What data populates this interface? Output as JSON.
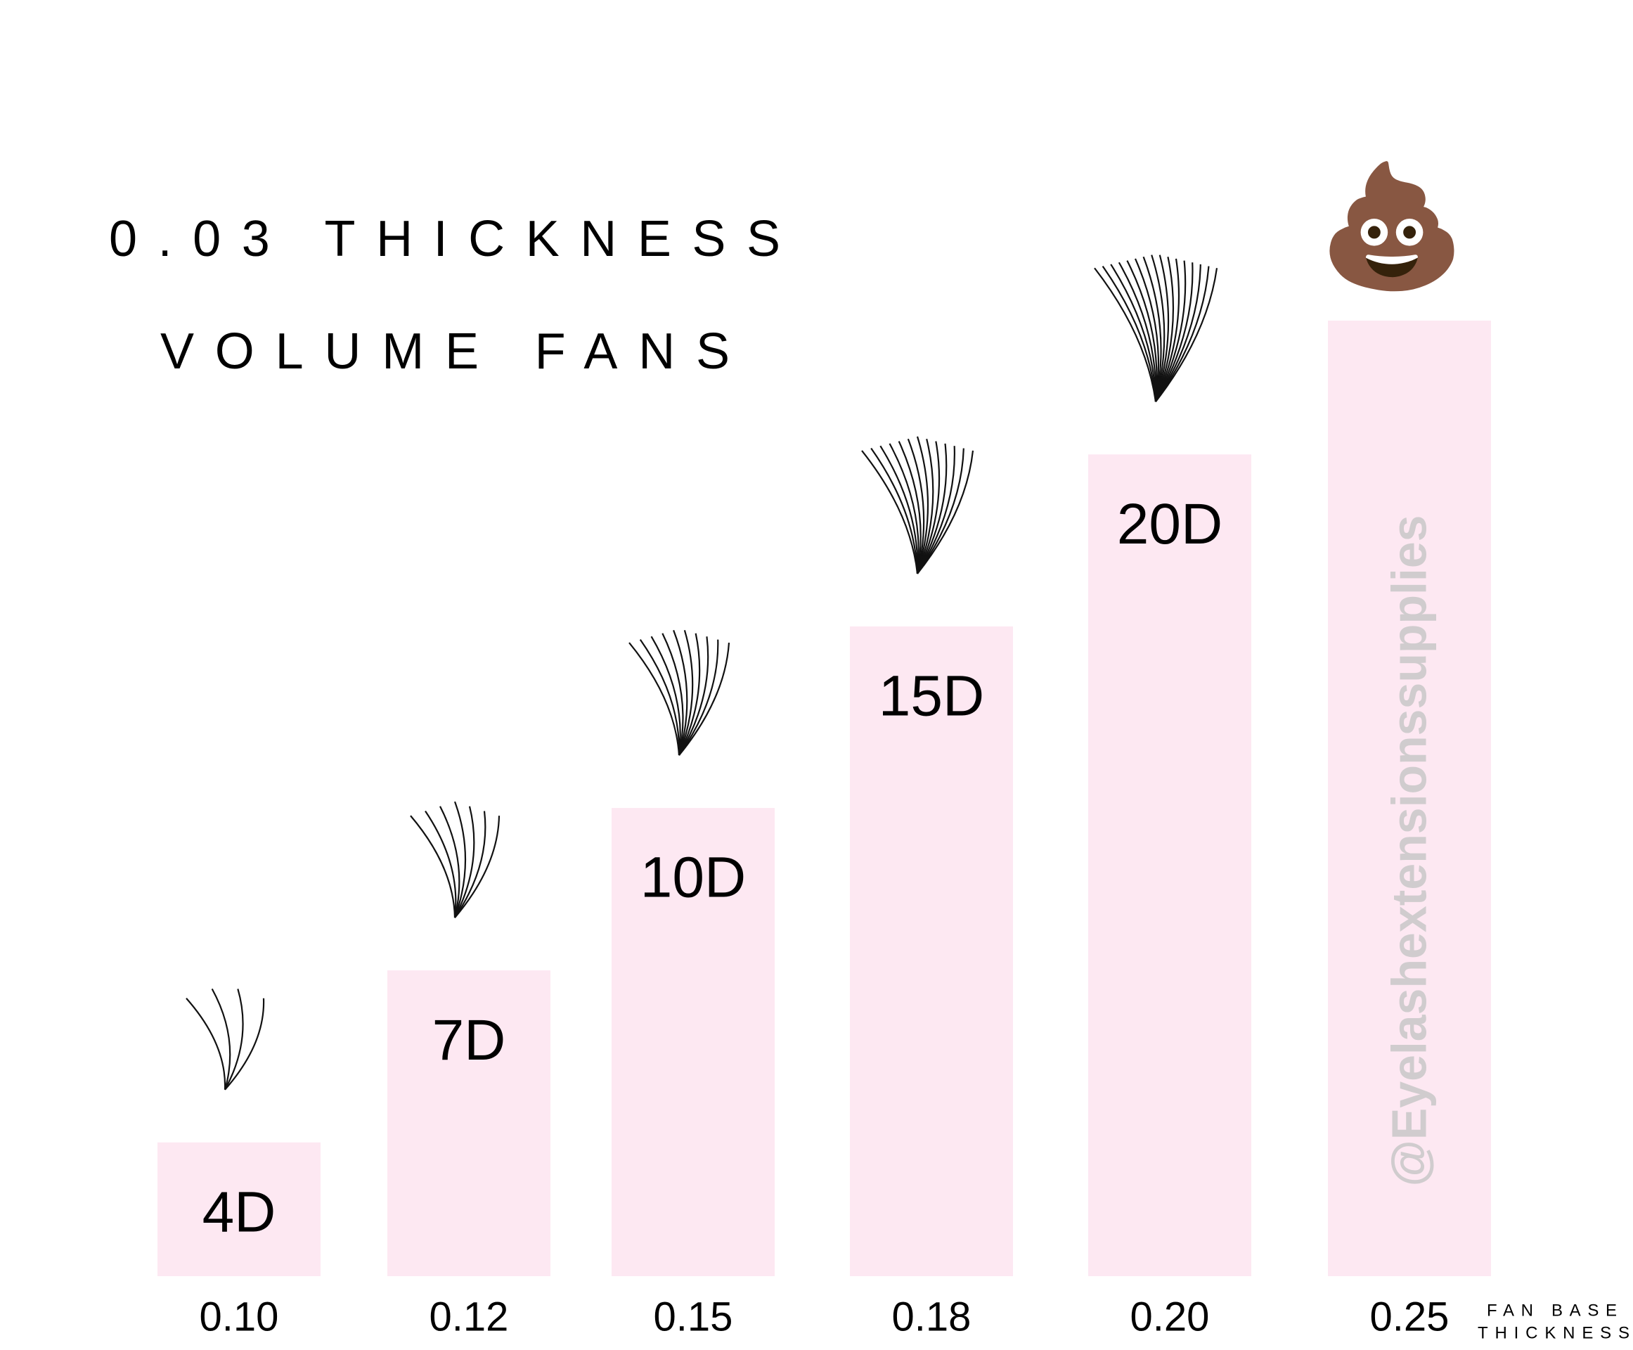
{
  "chart_data": {
    "type": "bar",
    "title": [
      "0.03 THICKNESS",
      "VOLUME FANS"
    ],
    "categories": [
      "0.10",
      "0.12",
      "0.15",
      "0.18",
      "0.20",
      "0.25"
    ],
    "values": [
      14,
      32,
      49,
      68,
      86,
      100
    ],
    "fan_labels": [
      "4D",
      "7D",
      "10D",
      "15D",
      "20D",
      null
    ],
    "ylim": [
      0,
      100
    ],
    "color": "#fde8f2",
    "x_axis_label": [
      "FAN BASE",
      "THICKNESS"
    ],
    "top_icon": "💩",
    "watermark": "@Eyelashextensionssupplies"
  }
}
